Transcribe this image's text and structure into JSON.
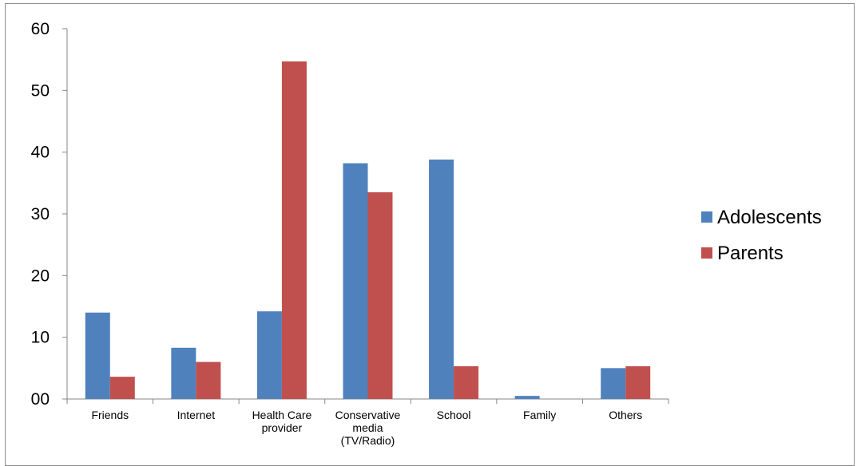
{
  "chart_data": {
    "type": "bar",
    "categories": [
      [
        "Friends"
      ],
      [
        "Internet"
      ],
      [
        "Health Care",
        "provider"
      ],
      [
        "Conservative",
        "media",
        "(TV/Radio)"
      ],
      [
        "School"
      ],
      [
        "Family"
      ],
      [
        "Others"
      ]
    ],
    "series": [
      {
        "name": "Adolescents",
        "color": "#4f81bd",
        "values": [
          14,
          8.3,
          14.2,
          38.2,
          38.8,
          0.5,
          5
        ]
      },
      {
        "name": "Parents",
        "color": "#c0504d",
        "values": [
          3.6,
          6,
          54.7,
          33.5,
          5.3,
          0,
          5.3
        ]
      }
    ],
    "y_ticks": [
      "00",
      "10",
      "20",
      "30",
      "40",
      "50",
      "60"
    ],
    "ylim": [
      0,
      60
    ],
    "grid": false,
    "legend_position": "right"
  }
}
